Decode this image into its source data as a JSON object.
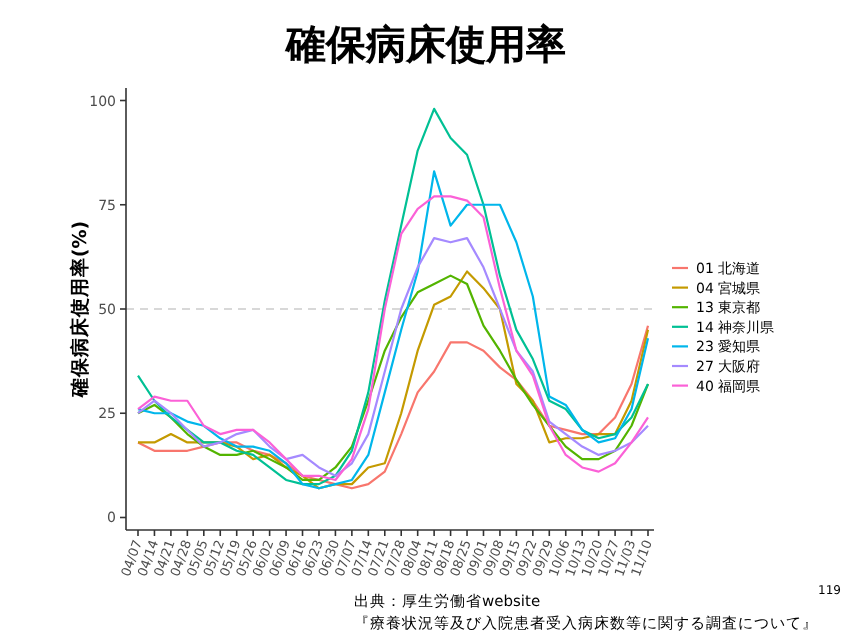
{
  "chart_data": {
    "type": "line",
    "title": "確保病床使用率",
    "ylabel": "確保病床使用率(%)",
    "categories": [
      "04/07",
      "04/14",
      "04/21",
      "04/28",
      "05/05",
      "05/12",
      "05/19",
      "05/26",
      "06/02",
      "06/09",
      "06/16",
      "06/23",
      "06/30",
      "07/07",
      "07/14",
      "07/21",
      "07/28",
      "08/04",
      "08/11",
      "08/18",
      "08/25",
      "09/01",
      "09/08",
      "09/15",
      "09/22",
      "09/29",
      "10/06",
      "10/13",
      "10/20",
      "10/27",
      "11/03",
      "11/10"
    ],
    "series": [
      {
        "name": "01 北海道",
        "color": "#f8766d",
        "values": [
          18,
          16,
          16,
          16,
          17,
          18,
          18,
          16,
          15,
          13,
          10,
          9,
          8,
          7,
          8,
          11,
          20,
          30,
          35,
          42,
          42,
          40,
          36,
          33,
          28,
          22,
          21,
          20,
          20,
          24,
          32,
          46
        ]
      },
      {
        "name": "04 宮城県",
        "color": "#c49a00",
        "values": [
          18,
          18,
          20,
          18,
          18,
          18,
          17,
          14,
          15,
          12,
          10,
          7,
          8,
          8,
          12,
          13,
          25,
          40,
          51,
          53,
          59,
          55,
          50,
          32,
          28,
          18,
          19,
          19,
          20,
          20,
          28,
          45
        ]
      },
      {
        "name": "13 東京都",
        "color": "#53b400",
        "values": [
          25,
          27,
          24,
          20,
          17,
          15,
          15,
          16,
          14,
          12,
          9,
          9,
          12,
          17,
          28,
          40,
          48,
          54,
          56,
          58,
          56,
          46,
          40,
          33,
          27,
          22,
          17,
          14,
          14,
          16,
          22,
          32
        ]
      },
      {
        "name": "14 神奈川県",
        "color": "#00c094",
        "values": [
          34,
          28,
          24,
          21,
          18,
          18,
          16,
          15,
          12,
          9,
          8,
          8,
          10,
          16,
          30,
          52,
          70,
          88,
          98,
          91,
          87,
          75,
          58,
          45,
          38,
          28,
          26,
          21,
          19,
          20,
          24,
          32
        ]
      },
      {
        "name": "23 愛知県",
        "color": "#00b6eb",
        "values": [
          26,
          25,
          25,
          23,
          22,
          19,
          17,
          17,
          16,
          13,
          8,
          7,
          8,
          9,
          15,
          30,
          45,
          59,
          83,
          70,
          75,
          75,
          75,
          66,
          53,
          29,
          27,
          21,
          18,
          19,
          26,
          43
        ]
      },
      {
        "name": "27 大阪府",
        "color": "#a58aff",
        "values": [
          25,
          28,
          25,
          21,
          17,
          18,
          20,
          21,
          17,
          14,
          15,
          12,
          10,
          13,
          20,
          35,
          50,
          60,
          67,
          66,
          67,
          60,
          50,
          40,
          35,
          23,
          20,
          17,
          15,
          16,
          18,
          22
        ]
      },
      {
        "name": "40 福岡県",
        "color": "#fb61d7",
        "values": [
          26,
          29,
          28,
          28,
          22,
          20,
          21,
          21,
          18,
          14,
          10,
          10,
          9,
          14,
          26,
          50,
          68,
          74,
          77,
          77,
          76,
          72,
          55,
          40,
          34,
          22,
          15,
          12,
          11,
          13,
          18,
          24
        ]
      }
    ],
    "ylim": [
      -3,
      103
    ],
    "yticks": [
      0,
      25,
      50,
      75,
      100
    ],
    "grid": false,
    "legend": "right",
    "line_style": "solid",
    "marker": "none",
    "ref_lines": [
      {
        "axis": "y",
        "value": 50,
        "color": "#cccccc",
        "line_style": "dashed"
      }
    ],
    "annotations": [
      "出典：厚生労働省website",
      "『療養状況等及び入院患者受入病床数等に関する調査について』",
      "119"
    ]
  }
}
